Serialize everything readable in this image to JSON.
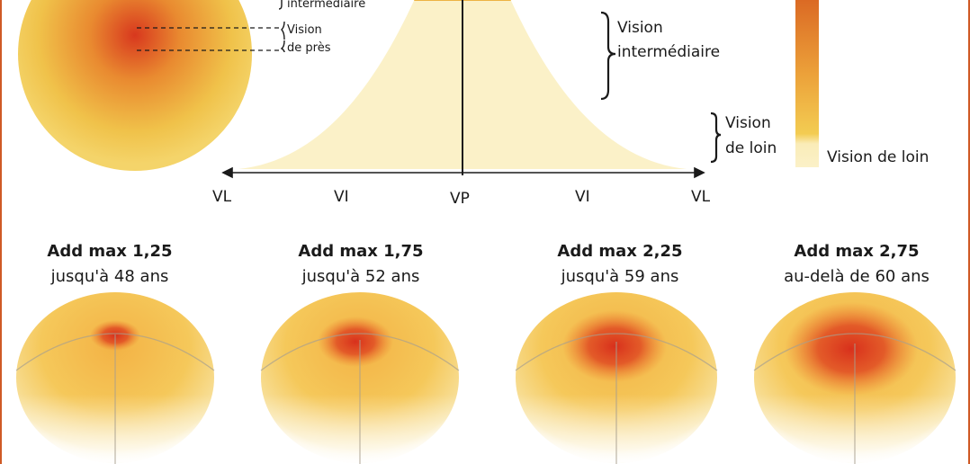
{
  "top_disc": {
    "labels": {
      "intermediate": "intermédiaire",
      "near_1": "Vision",
      "near_2": "de près"
    }
  },
  "profile": {
    "label_intermediate_1": "Vision",
    "label_intermediate_2": "intermédiaire",
    "label_far_1": "Vision",
    "label_far_2": "de loin",
    "axis_ticks": [
      "VL",
      "VI",
      "VP",
      "VI",
      "VL"
    ]
  },
  "gradient_bar": {
    "label": "Vision de loin"
  },
  "lenses": [
    {
      "title": "Add max 1,25",
      "subtitle": "jusqu'à 48 ans"
    },
    {
      "title": "Add max 1,75",
      "subtitle": "jusqu'à 52 ans"
    },
    {
      "title": "Add max 2,25",
      "subtitle": "jusqu'à 59 ans"
    },
    {
      "title": "Add max 2,75",
      "subtitle": "au-delà de 60 ans"
    }
  ],
  "colors": {
    "frame": "#cf5a26",
    "near_red": "#d8381e",
    "mid_orange": "#e9a032",
    "far_yellow": "#f2cf58",
    "pale": "#fbf1c8"
  }
}
